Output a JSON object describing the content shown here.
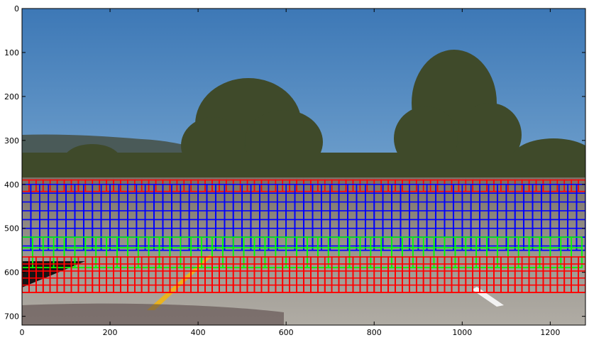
{
  "chart_data": {
    "type": "scatter",
    "title": "",
    "xlabel": "",
    "ylabel": "",
    "xlim": [
      0,
      1280
    ],
    "ylim": [
      720,
      0
    ],
    "y_inverted": true,
    "grid": false,
    "x_ticks": [
      0,
      200,
      400,
      600,
      800,
      1000,
      1200
    ],
    "y_ticks": [
      0,
      100,
      200,
      300,
      400,
      500,
      600,
      700
    ],
    "image": {
      "description_type": "road scene photo",
      "colors": {
        "sky_top": "#3d78b6",
        "sky_bottom": "#9cc3e0",
        "hills": "#4a5a58",
        "trees": "#3f4a2a",
        "road": "#9a9690",
        "lane_line": "#e9b320",
        "white_marking": "#f2f2f2"
      }
    },
    "series": [
      {
        "color": "#ff0000",
        "window_size": 64,
        "step": 16,
        "y_range": [
          390,
          400
        ],
        "x_range": [
          0,
          1280
        ]
      },
      {
        "color": "#0000ff",
        "window_size": 80,
        "step": 20,
        "y_range": [
          400,
          530
        ],
        "x_range": [
          0,
          1280
        ]
      },
      {
        "color": "#00ff00",
        "window_size": 96,
        "step": 24,
        "y_range": [
          520,
          565
        ],
        "x_range": [
          0,
          1280
        ]
      },
      {
        "color": "#ff0000",
        "window_size": 128,
        "step": 16,
        "y_range": [
          565,
          630
        ],
        "x_range": [
          0,
          1280
        ]
      }
    ]
  }
}
